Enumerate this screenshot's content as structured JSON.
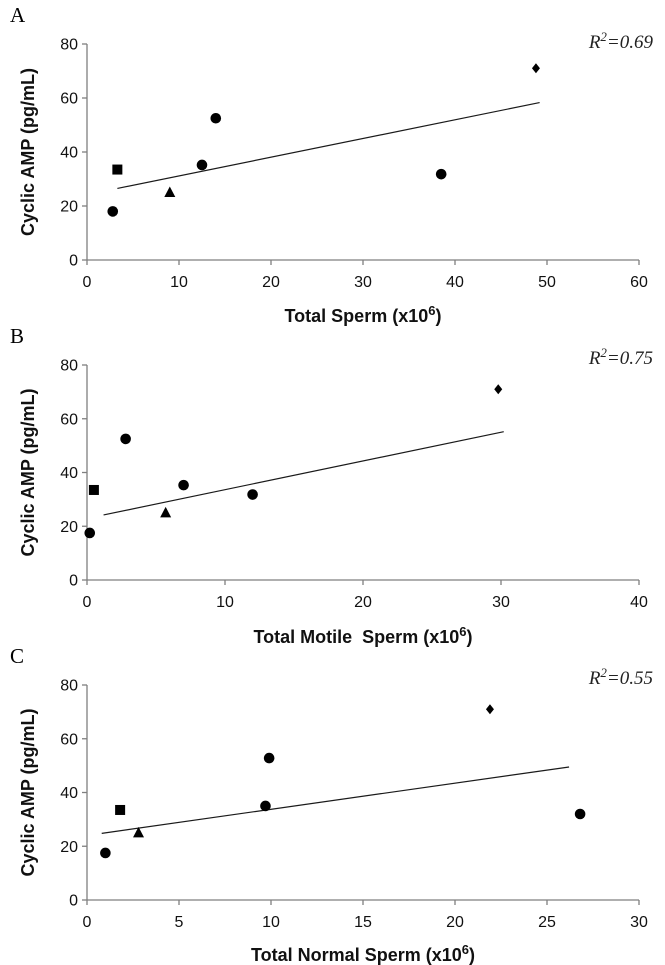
{
  "chart_data": [
    {
      "type": "scatter",
      "panel": "A",
      "annotation": "R²=0.69",
      "r2_prefix": "R",
      "r2_exp": "2",
      "r2_value": "=0.69",
      "xlabel_main": "Total Sperm (x10",
      "xlabel_exp": "6",
      "xlabel_close": ")",
      "ylabel": "Cyclic AMP (pg/mL)",
      "xlim": [
        0,
        60
      ],
      "ylim": [
        0,
        80
      ],
      "xticks": [
        0,
        10,
        20,
        30,
        40,
        50,
        60
      ],
      "yticks": [
        0,
        20,
        40,
        60,
        80
      ],
      "grid": false,
      "legend": "none",
      "points": [
        {
          "x": 3.3,
          "y": 33.5,
          "marker": "square"
        },
        {
          "x": 2.8,
          "y": 18,
          "marker": "circle"
        },
        {
          "x": 9,
          "y": 25,
          "marker": "triangle"
        },
        {
          "x": 12.5,
          "y": 35.2,
          "marker": "circle"
        },
        {
          "x": 14,
          "y": 52.5,
          "marker": "circle"
        },
        {
          "x": 38.5,
          "y": 31.8,
          "marker": "circle"
        },
        {
          "x": 48.8,
          "y": 71,
          "marker": "diamond"
        }
      ],
      "trendline": [
        [
          3.3,
          26.5
        ],
        [
          49.2,
          58.3
        ]
      ]
    },
    {
      "type": "scatter",
      "panel": "B",
      "annotation": "R²=0.75",
      "r2_prefix": "R",
      "r2_exp": "2",
      "r2_value": "=0.75",
      "xlabel_main": "Total Motile  Sperm (x10",
      "xlabel_exp": "6",
      "xlabel_close": ")",
      "ylabel": "Cyclic AMP (pg/mL)",
      "xlim": [
        0,
        40
      ],
      "ylim": [
        0,
        80
      ],
      "xticks": [
        0,
        10,
        20,
        30,
        40
      ],
      "yticks": [
        0,
        20,
        40,
        60,
        80
      ],
      "grid": false,
      "legend": "none",
      "points": [
        {
          "x": 0.5,
          "y": 33.5,
          "marker": "square"
        },
        {
          "x": 0.2,
          "y": 17.5,
          "marker": "circle"
        },
        {
          "x": 5.7,
          "y": 25,
          "marker": "triangle"
        },
        {
          "x": 7,
          "y": 35.3,
          "marker": "circle"
        },
        {
          "x": 2.8,
          "y": 52.5,
          "marker": "circle"
        },
        {
          "x": 12,
          "y": 31.8,
          "marker": "circle"
        },
        {
          "x": 29.8,
          "y": 71,
          "marker": "diamond"
        }
      ],
      "trendline": [
        [
          1.2,
          24.2
        ],
        [
          30.2,
          55.2
        ]
      ]
    },
    {
      "type": "scatter",
      "panel": "C",
      "annotation": "R²=0.55",
      "r2_prefix": "R",
      "r2_exp": "2",
      "r2_value": "=0.55",
      "xlabel_main": "Total Normal Sperm (x10",
      "xlabel_exp": "6",
      "xlabel_close": ")",
      "ylabel": "Cyclic AMP (pg/mL)",
      "xlim": [
        0,
        30
      ],
      "ylim": [
        0,
        80
      ],
      "xticks": [
        0,
        5,
        10,
        15,
        20,
        25,
        30
      ],
      "yticks": [
        0,
        20,
        40,
        60,
        80
      ],
      "grid": false,
      "legend": "none",
      "points": [
        {
          "x": 1.8,
          "y": 33.5,
          "marker": "square"
        },
        {
          "x": 1,
          "y": 17.5,
          "marker": "circle"
        },
        {
          "x": 2.8,
          "y": 25,
          "marker": "triangle"
        },
        {
          "x": 9.7,
          "y": 35,
          "marker": "circle"
        },
        {
          "x": 9.9,
          "y": 52.8,
          "marker": "circle"
        },
        {
          "x": 26.8,
          "y": 32,
          "marker": "circle"
        },
        {
          "x": 21.9,
          "y": 71,
          "marker": "diamond"
        }
      ],
      "trendline": [
        [
          0.8,
          24.8
        ],
        [
          26.2,
          49.5
        ]
      ]
    }
  ]
}
